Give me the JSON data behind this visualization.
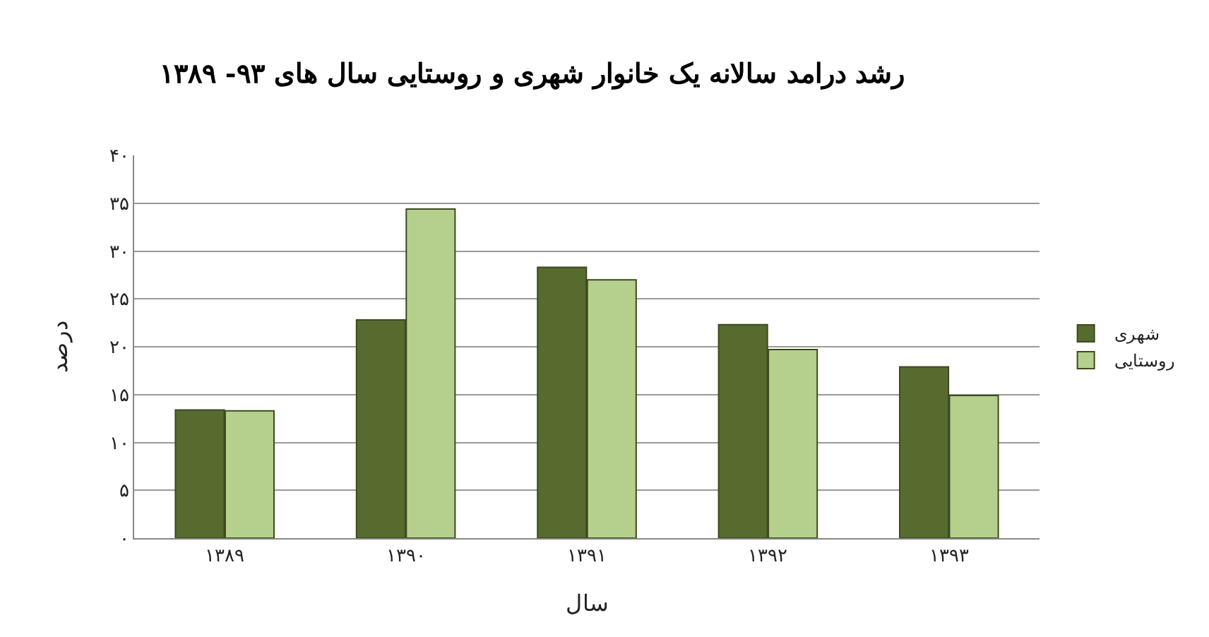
{
  "chart_data": {
    "type": "bar",
    "title": "رشد درامد سالانه یک خانوار شهری و روستایی سال های ۹۳- ۱۳۸۹",
    "xlabel": "سال",
    "ylabel": "درصد",
    "categories": [
      "۱۳۸۹",
      "۱۳۹۰",
      "۱۳۹۱",
      "۱۳۹۲",
      "۱۳۹۳"
    ],
    "series": [
      {
        "name": "شهری",
        "color": "#576b2e",
        "values": [
          13.4,
          22.8,
          28.3,
          22.3,
          17.9
        ]
      },
      {
        "name": "روستایی",
        "color": "#b5d08c",
        "values": [
          13.3,
          34.4,
          27.0,
          19.7,
          14.9
        ]
      }
    ],
    "ylim": [
      0,
      40
    ],
    "yticks": [
      {
        "value": 0,
        "label": "۰"
      },
      {
        "value": 5,
        "label": "۵"
      },
      {
        "value": 10,
        "label": "۱۰"
      },
      {
        "value": 15,
        "label": "۱۵"
      },
      {
        "value": 20,
        "label": "۲۰"
      },
      {
        "value": 25,
        "label": "۲۵"
      },
      {
        "value": 30,
        "label": "۳۰"
      },
      {
        "value": 35,
        "label": "۳۵"
      },
      {
        "value": 40,
        "label": "۴۰"
      }
    ],
    "grid": "y",
    "legend": "right"
  }
}
